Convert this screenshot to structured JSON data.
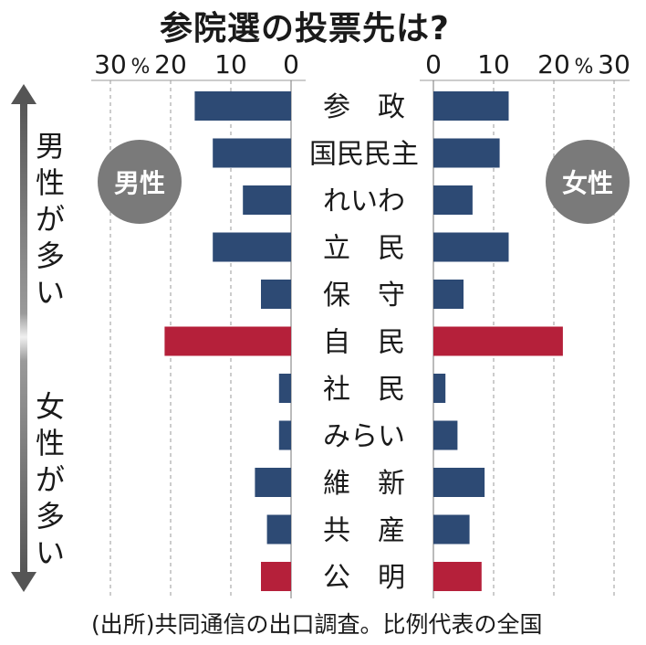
{
  "title": "参院選の投票先は?",
  "source": "(出所)共同通信の出口調査。比例代表の全国",
  "badges": {
    "male": "男性",
    "female": "女性"
  },
  "side_labels": {
    "top": [
      "男",
      "性",
      "が",
      "多",
      "い"
    ],
    "bottom": [
      "女",
      "性",
      "が",
      "多",
      "い"
    ]
  },
  "colors": {
    "bar_default": "#2d4a74",
    "bar_highlight": "#b5203a",
    "grid": "#9a9a9a",
    "arrow": "#555555"
  },
  "chart_data": {
    "type": "bar",
    "orientation": "horizontal-butterfly",
    "title": "参院選の投票先は?",
    "left_axis": {
      "ticks": [
        "30",
        "20",
        "10",
        "0"
      ],
      "unit": "%",
      "range": [
        0,
        30
      ]
    },
    "right_axis": {
      "ticks": [
        "0",
        "10",
        "20",
        "30"
      ],
      "unit": "%",
      "range": [
        0,
        30
      ]
    },
    "categories": [
      "参　政",
      "国民民主",
      "れいわ",
      "立　民",
      "保　守",
      "自　民",
      "社　民",
      "みらい",
      "維　新",
      "共　産",
      "公　明"
    ],
    "series": [
      {
        "name": "男性",
        "values": [
          16,
          13,
          8,
          13,
          5,
          21,
          2,
          2,
          6,
          4,
          5
        ]
      },
      {
        "name": "女性",
        "values": [
          12.5,
          11,
          6.5,
          12.5,
          5,
          21.5,
          2,
          4,
          8.5,
          6,
          8
        ]
      }
    ],
    "highlighted": [
      "自　民",
      "公　明"
    ],
    "grid": true
  }
}
